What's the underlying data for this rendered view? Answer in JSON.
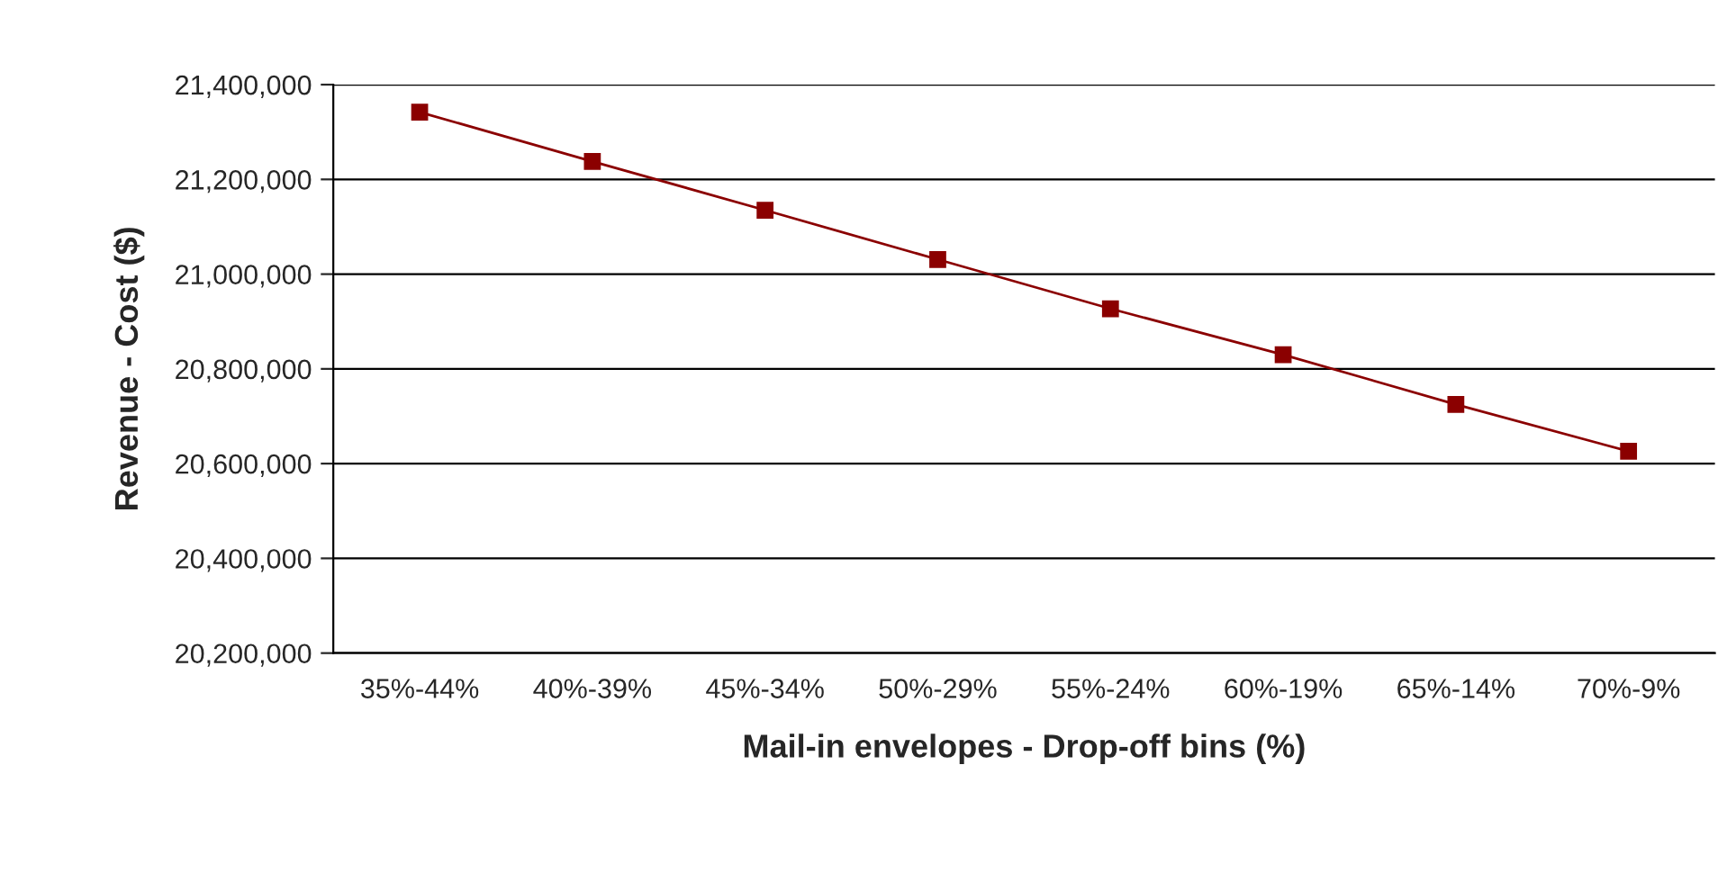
{
  "chart_data": {
    "type": "line",
    "xlabel": "Mail-in envelopes - Drop-off bins (%)",
    "ylabel": "Revenue - Cost ($)",
    "categories": [
      "35%-44%",
      "40%-39%",
      "45%-34%",
      "50%-29%",
      "55%-24%",
      "60%-19%",
      "65%-14%",
      "70%-9%"
    ],
    "series": [
      {
        "color": "#8b0000",
        "values": [
          21342000,
          21238000,
          21135000,
          21031000,
          20927000,
          20830000,
          20725000,
          20626000
        ]
      }
    ],
    "ylim": [
      20200000,
      21400000
    ],
    "yticks": [
      {
        "value": 20200000,
        "label": "20,200,000"
      },
      {
        "value": 20400000,
        "label": "20,400,000"
      },
      {
        "value": 20600000,
        "label": "20,600,000"
      },
      {
        "value": 20800000,
        "label": "20,800,000"
      },
      {
        "value": 21000000,
        "label": "21,000,000"
      },
      {
        "value": 21200000,
        "label": "21,200,000"
      },
      {
        "value": 21400000,
        "label": "21,400,000"
      }
    ],
    "grid": "y",
    "marker": "square",
    "line_style": "solid"
  }
}
